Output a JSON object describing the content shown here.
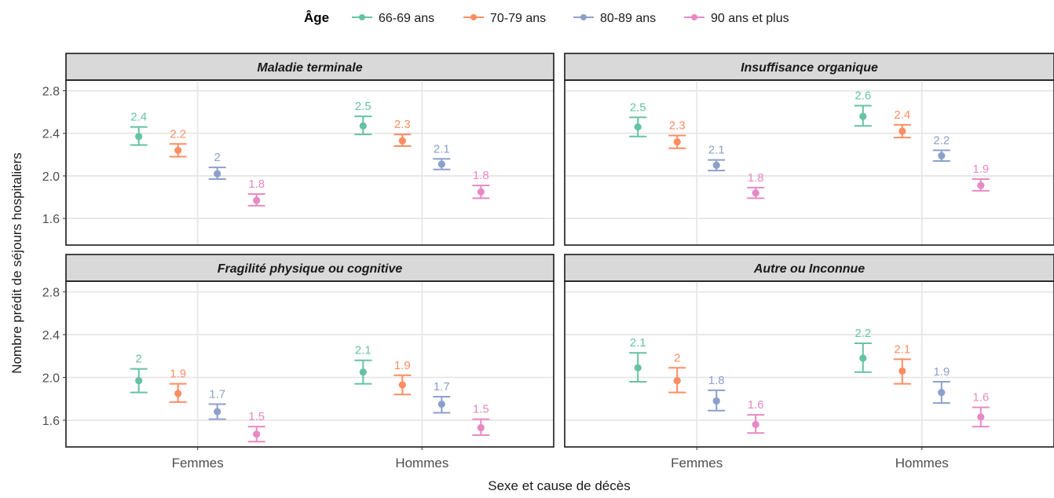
{
  "chart_data": {
    "type": "point-errorbar",
    "ylabel": "Nombre prédit de séjours hospitaliers",
    "xlabel": "Sexe et cause de décès",
    "categories": [
      "Femmes",
      "Hommes"
    ],
    "yticks": [
      "1.6",
      "2.0",
      "2.4",
      "2.8"
    ],
    "ylim": [
      1.35,
      2.9
    ],
    "grid": true,
    "legend": {
      "title": "Âge",
      "position": "top",
      "entries": [
        "66-69 ans",
        "70-79 ans",
        "80-89 ans",
        "90 ans et plus"
      ]
    },
    "colors": [
      "#66c2a5",
      "#fc8d62",
      "#8da0cb",
      "#e78ac3"
    ],
    "panels": [
      {
        "title": "Maladie terminale",
        "series": [
          {
            "name": "66-69 ans",
            "values": [
              2.37,
              2.47
            ],
            "lower": [
              2.29,
              2.39
            ],
            "upper": [
              2.46,
              2.56
            ],
            "labels": [
              "2.4",
              "2.5"
            ]
          },
          {
            "name": "70-79 ans",
            "values": [
              2.24,
              2.33
            ],
            "lower": [
              2.18,
              2.28
            ],
            "upper": [
              2.3,
              2.39
            ],
            "labels": [
              "2.2",
              "2.3"
            ]
          },
          {
            "name": "80-89 ans",
            "values": [
              2.02,
              2.11
            ],
            "lower": [
              1.97,
              2.06
            ],
            "upper": [
              2.08,
              2.16
            ],
            "labels": [
              "2",
              "2.1"
            ]
          },
          {
            "name": "90 ans et plus",
            "values": [
              1.77,
              1.85
            ],
            "lower": [
              1.72,
              1.79
            ],
            "upper": [
              1.83,
              1.91
            ],
            "labels": [
              "1.8",
              "1.8"
            ]
          }
        ]
      },
      {
        "title": "Insuffisance organique",
        "series": [
          {
            "name": "66-69 ans",
            "values": [
              2.46,
              2.56
            ],
            "lower": [
              2.37,
              2.47
            ],
            "upper": [
              2.55,
              2.66
            ],
            "labels": [
              "2.5",
              "2.6"
            ]
          },
          {
            "name": "70-79 ans",
            "values": [
              2.32,
              2.42
            ],
            "lower": [
              2.26,
              2.36
            ],
            "upper": [
              2.38,
              2.48
            ],
            "labels": [
              "2.3",
              "2.4"
            ]
          },
          {
            "name": "80-89 ans",
            "values": [
              2.1,
              2.19
            ],
            "lower": [
              2.05,
              2.14
            ],
            "upper": [
              2.15,
              2.24
            ],
            "labels": [
              "2.1",
              "2.2"
            ]
          },
          {
            "name": "90 ans et plus",
            "values": [
              1.84,
              1.91
            ],
            "lower": [
              1.79,
              1.86
            ],
            "upper": [
              1.89,
              1.97
            ],
            "labels": [
              "1.8",
              "1.9"
            ]
          }
        ]
      },
      {
        "title": "Fragilité physique ou cognitive",
        "series": [
          {
            "name": "66-69 ans",
            "values": [
              1.97,
              2.05
            ],
            "lower": [
              1.86,
              1.94
            ],
            "upper": [
              2.08,
              2.16
            ],
            "labels": [
              "2",
              "2.1"
            ]
          },
          {
            "name": "70-79 ans",
            "values": [
              1.85,
              1.93
            ],
            "lower": [
              1.77,
              1.84
            ],
            "upper": [
              1.94,
              2.02
            ],
            "labels": [
              "1.9",
              "1.9"
            ]
          },
          {
            "name": "80-89 ans",
            "values": [
              1.68,
              1.75
            ],
            "lower": [
              1.61,
              1.67
            ],
            "upper": [
              1.75,
              1.82
            ],
            "labels": [
              "1.7",
              "1.7"
            ]
          },
          {
            "name": "90 ans et plus",
            "values": [
              1.47,
              1.53
            ],
            "lower": [
              1.4,
              1.46
            ],
            "upper": [
              1.54,
              1.61
            ],
            "labels": [
              "1.5",
              "1.5"
            ]
          }
        ]
      },
      {
        "title": "Autre ou Inconnue",
        "series": [
          {
            "name": "66-69 ans",
            "values": [
              2.09,
              2.18
            ],
            "lower": [
              1.96,
              2.05
            ],
            "upper": [
              2.23,
              2.32
            ],
            "labels": [
              "2.1",
              "2.2"
            ]
          },
          {
            "name": "70-79 ans",
            "values": [
              1.97,
              2.06
            ],
            "lower": [
              1.86,
              1.94
            ],
            "upper": [
              2.09,
              2.17
            ],
            "labels": [
              "2",
              "2.1"
            ]
          },
          {
            "name": "80-89 ans",
            "values": [
              1.78,
              1.86
            ],
            "lower": [
              1.69,
              1.76
            ],
            "upper": [
              1.88,
              1.96
            ],
            "labels": [
              "1.8",
              "1.9"
            ]
          },
          {
            "name": "90 ans et plus",
            "values": [
              1.56,
              1.63
            ],
            "lower": [
              1.48,
              1.54
            ],
            "upper": [
              1.65,
              1.72
            ],
            "labels": [
              "1.6",
              "1.6"
            ]
          }
        ]
      }
    ]
  }
}
